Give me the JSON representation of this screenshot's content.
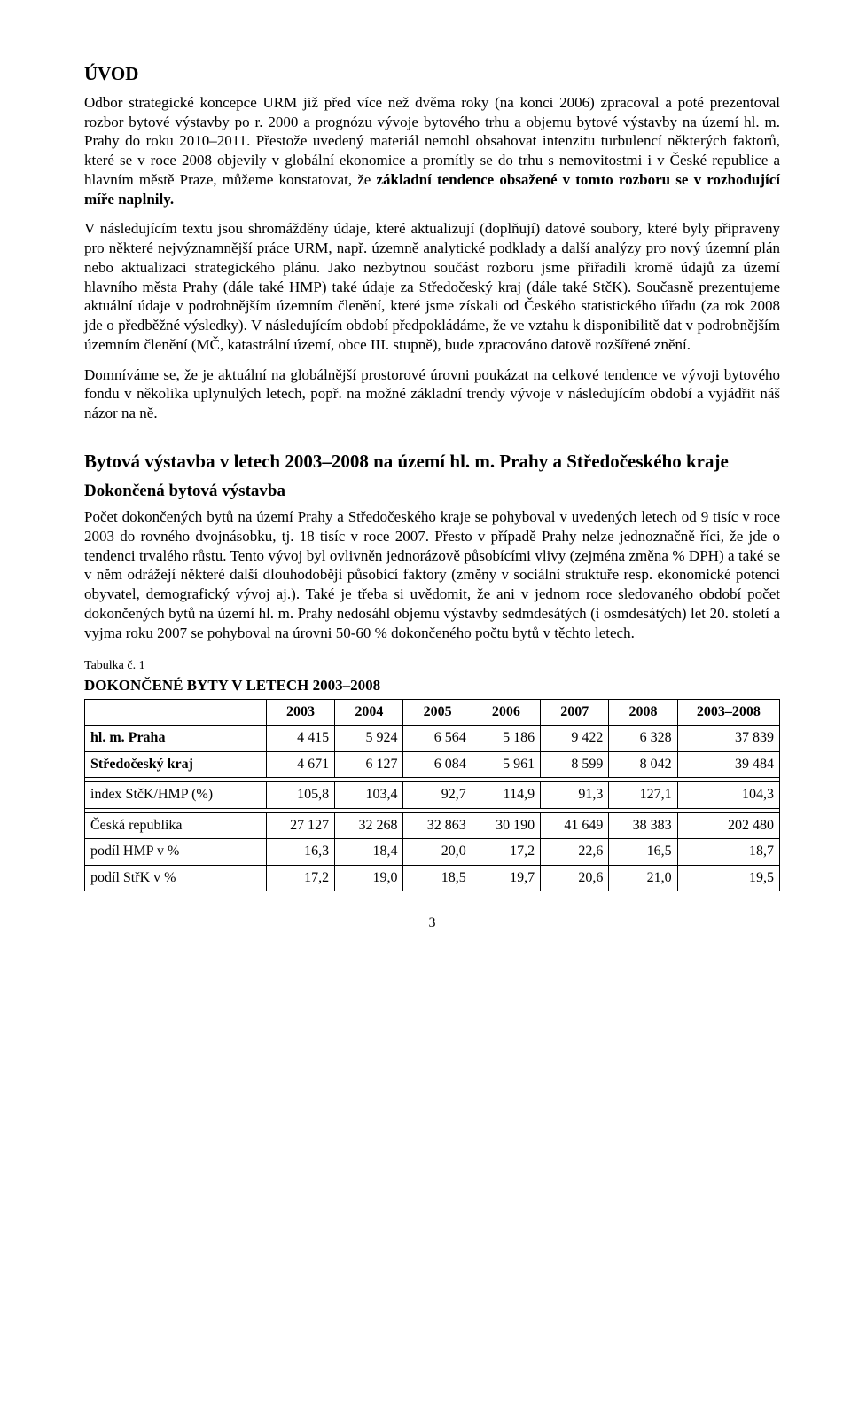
{
  "heading_uvod": "ÚVOD",
  "para1": "Odbor strategické koncepce URM již před více než dvěma roky (na konci 2006) zpracoval a poté prezentoval rozbor bytové výstavby po r. 2000 a  prognózu vývoje bytového trhu a objemu bytové výstavby na území hl. m. Prahy do roku 2010–2011. Přestože uvedený materiál nemohl obsahovat intenzitu turbulencí některých faktorů, které se v roce 2008 objevily v globální ekonomice a promítly se do trhu s nemovitostmi i v České republice a hlavním městě Praze, můžeme konstatovat, že ",
  "para1_bold": "základní tendence obsažené v tomto rozboru se v rozhodující míře naplnily.",
  "para2": "V následujícím textu jsou shromážděny údaje, které aktualizují (doplňují) datové soubory, které byly připraveny pro některé nejvýznamnější práce URM, např. územně analytické podklady a další analýzy pro nový územní plán nebo aktualizaci strategického plánu. Jako nezbytnou součást rozboru jsme přiřadili kromě údajů za území hlavního města Prahy (dále také HMP) také údaje za Středočeský kraj (dále také StčK). Současně prezentujeme aktuální údaje v podrobnějším územním členění, které jsme získali od Českého statistického úřadu (za rok 2008 jde o předběžné výsledky). V následujícím období předpokládáme, že ve vztahu k disponibilitě dat v podrobnějším územním členění (MČ, katastrální území, obce III. stupně), bude zpracováno datově rozšířené znění.",
  "para3": "Domníváme se, že je aktuální na globálnější prostorové úrovni poukázat na celkové tendence ve vývoji bytového fondu v několika uplynulých letech, popř. na možné základní trendy vývoje v následujícím období a vyjádřit náš názor na ně.",
  "section_title": "Bytová výstavba v letech 2003–2008 na území hl. m. Prahy a Středočeského kraje",
  "subsection_title": "Dokončená bytová výstavba",
  "para4": "Počet dokončených bytů na území Prahy a Středočeského kraje se pohyboval v uvedených letech od 9 tisíc v roce 2003 do rovného dvojnásobku, tj. 18 tisíc v roce 2007. Přesto v případě Prahy nelze jednoznačně říci, že jde o tendenci trvalého růstu. Tento vývoj byl ovlivněn jednorázově působícími vlivy (zejména změna % DPH) a také se v něm odrážejí některé další dlouhodoběji působící faktory (změny v sociální struktuře resp. ekonomické potenci obyvatel, demografický vývoj aj.). Také je třeba si uvědomit, že ani v jednom roce sledovaného období počet dokončených bytů na území hl. m. Prahy nedosáhl objemu výstavby sedmdesátých (i osmdesátých) let 20. století a vyjma roku 2007 se pohyboval na úrovni 50-60 % dokončeného počtu bytů v těchto letech.",
  "table_caption": "Tabulka č. 1",
  "table_title": "DOKONČENÉ BYTY V LETECH 2003–2008",
  "table": {
    "type": "table",
    "columns": [
      "",
      "2003",
      "2004",
      "2005",
      "2006",
      "2007",
      "2008",
      "2003–2008"
    ],
    "col_align": [
      "left",
      "right",
      "right",
      "right",
      "right",
      "right",
      "right",
      "right"
    ],
    "rows": [
      {
        "label": "hl. m. Praha",
        "bold": true,
        "values": [
          "4 415",
          "5 924",
          "6 564",
          "5 186",
          "9 422",
          "6 328",
          "37 839"
        ]
      },
      {
        "label": "Středočeský kraj",
        "bold": true,
        "values": [
          "4 671",
          "6 127",
          "6 084",
          "5 961",
          "8 599",
          "8 042",
          "39 484"
        ]
      },
      {
        "spacer": true
      },
      {
        "label": "index StčK/HMP (%)",
        "bold": false,
        "values": [
          "105,8",
          "103,4",
          "92,7",
          "114,9",
          "91,3",
          "127,1",
          "104,3"
        ]
      },
      {
        "spacer": true
      },
      {
        "label": "Česká republika",
        "bold": false,
        "values": [
          "27 127",
          "32 268",
          "32 863",
          "30 190",
          "41 649",
          "38 383",
          "202 480"
        ]
      },
      {
        "label": "podíl HMP v %",
        "bold": false,
        "values": [
          "16,3",
          "18,4",
          "20,0",
          "17,2",
          "22,6",
          "16,5",
          "18,7"
        ]
      },
      {
        "label": "podíl StřK v %",
        "bold": false,
        "values": [
          "17,2",
          "19,0",
          "18,5",
          "19,7",
          "20,6",
          "21,0",
          "19,5"
        ]
      }
    ],
    "border_color": "#000000",
    "background_color": "#ffffff",
    "cell_fontsize": 16,
    "header_fontsize": 16
  },
  "page_number": "3"
}
